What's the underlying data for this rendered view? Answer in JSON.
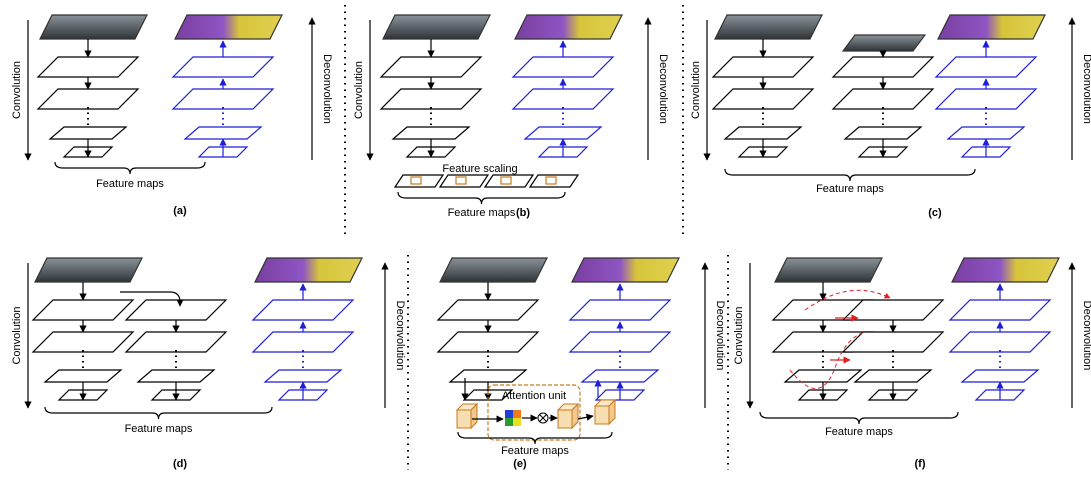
{
  "panels": [
    {
      "label": "(a)",
      "convolution": "Convolution",
      "deconvolution": "Deconvolution",
      "feature_maps": "Feature maps"
    },
    {
      "label": "(b)",
      "convolution": "Convolution",
      "deconvolution": "Deconvolution",
      "feature_maps": "Feature maps",
      "feature_scaling": "Feature scaling"
    },
    {
      "label": "(c)",
      "convolution": "Convolution",
      "deconvolution": "Deconvolution",
      "feature_maps": "Feature maps"
    },
    {
      "label": "(d)",
      "convolution": "Convolution",
      "deconvolution": "Deconvolution",
      "feature_maps": "Feature maps"
    },
    {
      "label": "(e)",
      "deconvolution": "Deconvolution",
      "feature_maps": "Feature maps",
      "attention_unit": "Attention unit"
    },
    {
      "label": "(f)",
      "convolution": "Convolution",
      "deconvolution": "Deconvolution",
      "feature_maps": "Feature maps"
    }
  ]
}
